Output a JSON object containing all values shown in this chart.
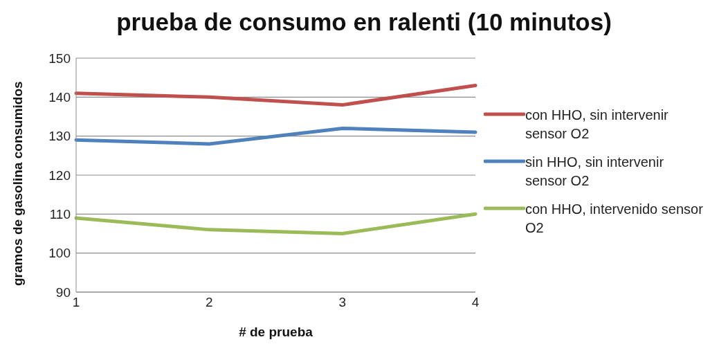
{
  "chart_data": {
    "type": "line",
    "title": "prueba de consumo en ralenti (10 minutos)",
    "xlabel": "# de prueba",
    "ylabel": "gramos de gasolina consumidos",
    "categories": [
      "1",
      "2",
      "3",
      "4"
    ],
    "series": [
      {
        "name": "con HHO, sin intervenir sensor O2",
        "color": "#c0504d",
        "values": [
          141,
          140,
          138,
          143
        ]
      },
      {
        "name": "sin HHO, sin intervenir sensor O2",
        "color": "#4f81bd",
        "values": [
          129,
          128,
          132,
          131
        ]
      },
      {
        "name": "con HHO, intervenido sensor O2",
        "color": "#9bbb59",
        "values": [
          109,
          106,
          105,
          110
        ]
      }
    ],
    "ylim": [
      90,
      150
    ],
    "yticks": [
      90,
      100,
      110,
      120,
      130,
      140,
      150
    ],
    "grid": "y",
    "legend": "right",
    "marker": "none",
    "line_style": "solid"
  }
}
